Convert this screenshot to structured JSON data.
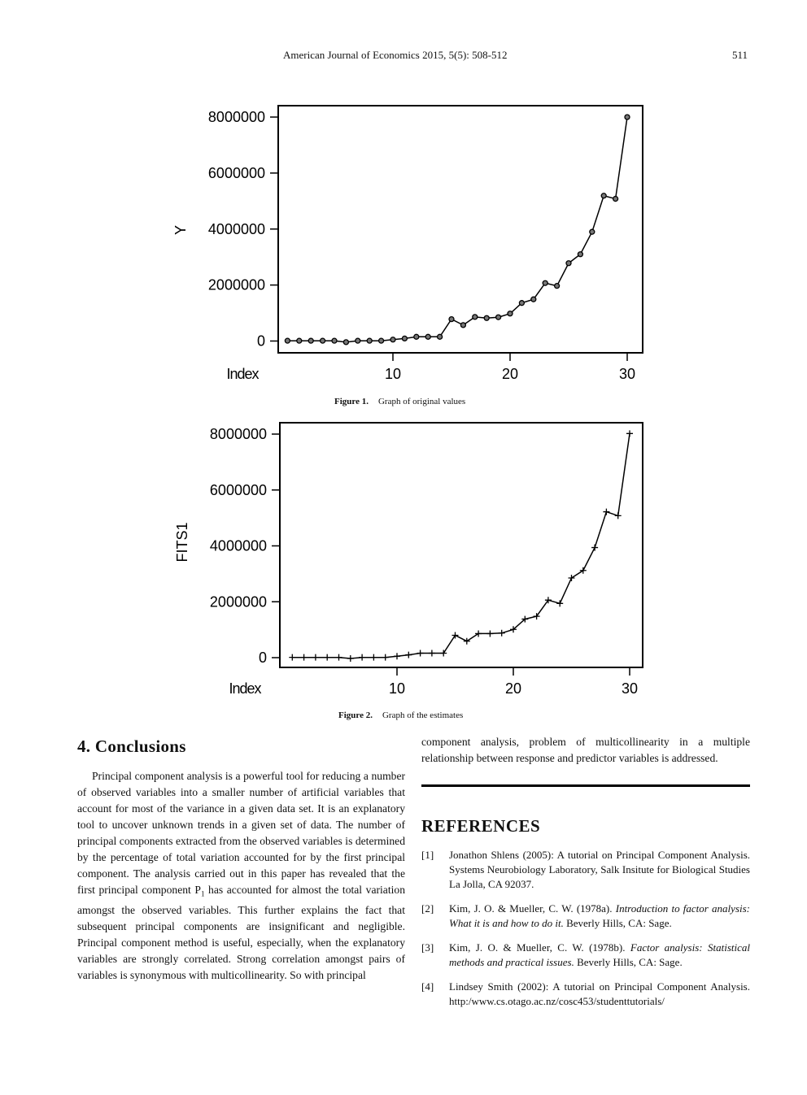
{
  "header": {
    "running_head": "American Journal of Economics 2015, 5(5): 508-512",
    "page_number": "511"
  },
  "figures": [
    {
      "label": "Figure 1.",
      "caption": "Graph of original values",
      "marker": "circle"
    },
    {
      "label": "Figure 2.",
      "caption": "Graph of the estimates",
      "marker": "plus"
    }
  ],
  "chart_data": [
    {
      "type": "line",
      "title": "",
      "xlabel": "Index",
      "ylabel": "Y",
      "x": [
        1,
        2,
        3,
        4,
        5,
        6,
        7,
        8,
        9,
        10,
        11,
        12,
        13,
        14,
        15,
        16,
        17,
        18,
        19,
        20,
        21,
        22,
        23,
        24,
        25,
        26,
        27,
        28,
        29,
        30
      ],
      "values": [
        10000,
        10000,
        10000,
        10000,
        10000,
        -40000,
        10000,
        10000,
        10000,
        50000,
        90000,
        150000,
        150000,
        150000,
        780000,
        570000,
        860000,
        820000,
        850000,
        980000,
        1360000,
        1490000,
        2070000,
        1970000,
        2780000,
        3100000,
        3900000,
        5190000,
        5080000,
        8000000
      ],
      "x_ticks": [
        10,
        20,
        30
      ],
      "x_tick_labels": [
        "10",
        "20",
        "30"
      ],
      "y_ticks": [
        0,
        2000000,
        4000000,
        6000000,
        8000000
      ],
      "y_tick_labels": [
        "0",
        "2000000",
        "4000000",
        "6000000",
        "8000000"
      ],
      "ylim": [
        -300000,
        8400000
      ],
      "xlim": [
        0.3,
        31
      ],
      "grid": false,
      "legend": "none",
      "marker": "circle"
    },
    {
      "type": "line",
      "title": "",
      "xlabel": "Index",
      "ylabel": "FITS1",
      "x": [
        1,
        2,
        3,
        4,
        5,
        6,
        7,
        8,
        9,
        10,
        11,
        12,
        13,
        14,
        15,
        16,
        17,
        18,
        19,
        20,
        21,
        22,
        23,
        24,
        25,
        26,
        27,
        28,
        29,
        30
      ],
      "values": [
        10000,
        10000,
        10000,
        10000,
        10000,
        -30000,
        10000,
        10000,
        10000,
        50000,
        100000,
        160000,
        160000,
        160000,
        800000,
        590000,
        860000,
        860000,
        880000,
        1010000,
        1380000,
        1480000,
        2060000,
        1940000,
        2850000,
        3120000,
        3940000,
        5220000,
        5080000,
        8020000
      ],
      "x_ticks": [
        10,
        20,
        30
      ],
      "x_tick_labels": [
        "10",
        "20",
        "30"
      ],
      "y_ticks": [
        0,
        2000000,
        4000000,
        6000000,
        8000000
      ],
      "y_tick_labels": [
        "0",
        "2000000",
        "4000000",
        "6000000",
        "8000000"
      ],
      "ylim": [
        -300000,
        8400000
      ],
      "xlim": [
        0.3,
        31
      ],
      "grid": false,
      "legend": "none",
      "marker": "plus"
    }
  ],
  "conclusions": {
    "title": "4. Conclusions",
    "para_left_1": "Principal component analysis is a powerful tool for reducing a number of observed variables into a smaller number of artificial variables that account for most of the variance in a given data set. It is an explanatory tool to uncover unknown trends in a given set of data. The number of principal components extracted from the observed variables is determined by the percentage of total variation accounted for by the first principal component. The analysis carried out in this paper has revealed that the first principal component P",
    "subscript": "1",
    "para_left_2": " has accounted for almost the total variation amongst the observed variables. This further explains the fact that subsequent principal components are insignificant and negligible. Principal component method is useful, especially, when the explanatory variables are strongly correlated. Strong correlation amongst pairs of variables is synonymous with multicollinearity. So with principal",
    "para_right": "component analysis, problem of multicollinearity in a multiple relationship between response and predictor variables is addressed."
  },
  "references": {
    "title": "REFERENCES",
    "items": [
      {
        "num": "[1]",
        "pre": "Jonathon Shlens (2005): A tutorial on Principal Component Analysis. Systems Neurobiology Laboratory, Salk Insitute for Biological Studies La Jolla, CA 92037.",
        "italic": "",
        "post": ""
      },
      {
        "num": "[2]",
        "pre": "Kim, J. O. & Mueller, C. W. (1978a). ",
        "italic": "Introduction to factor analysis: What it is and how to do it.",
        "post": " Beverly Hills, CA: Sage."
      },
      {
        "num": "[3]",
        "pre": "Kim, J. O. & Mueller, C. W. (1978b). ",
        "italic": "Factor analysis: Statistical methods and practical issues.",
        "post": " Beverly Hills, CA: Sage."
      },
      {
        "num": "[4]",
        "pre": "Lindsey Smith (2002): A tutorial on Principal Component Analysis. http:/www.cs.otago.ac.nz/cosc453/studenttutorials/",
        "italic": "",
        "post": ""
      }
    ]
  }
}
